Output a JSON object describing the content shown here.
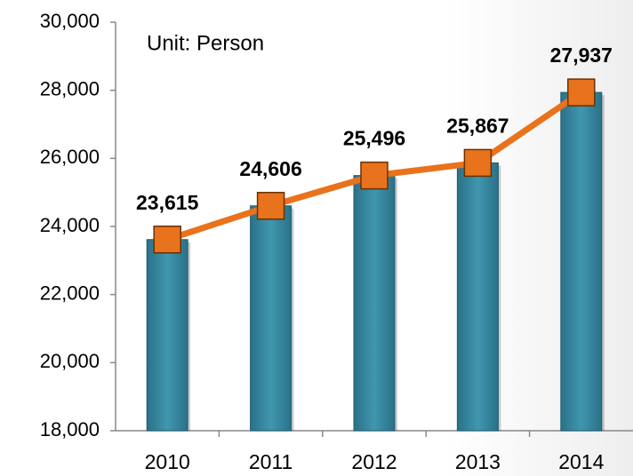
{
  "chart_data": {
    "type": "bar",
    "annotation": "Unit: Person",
    "categories": [
      "2010",
      "2011",
      "2012",
      "2013",
      "2014"
    ],
    "values": [
      23615,
      24606,
      25496,
      25867,
      27937
    ],
    "value_labels": [
      "23,615",
      "24,606",
      "25,496",
      "25,867",
      "27,937"
    ],
    "color": "#3a8ea5",
    "line_color": "#e8731c",
    "ylim": [
      18000,
      30000
    ],
    "yticks": [
      {
        "value": 18000,
        "label": "18,000"
      },
      {
        "value": 20000,
        "label": "20,000"
      },
      {
        "value": 22000,
        "label": "22,000"
      },
      {
        "value": 24000,
        "label": "24,000"
      },
      {
        "value": 26000,
        "label": "26,000"
      },
      {
        "value": 28000,
        "label": "28,000"
      },
      {
        "value": 30000,
        "label": "30,000"
      }
    ],
    "grid": false
  }
}
